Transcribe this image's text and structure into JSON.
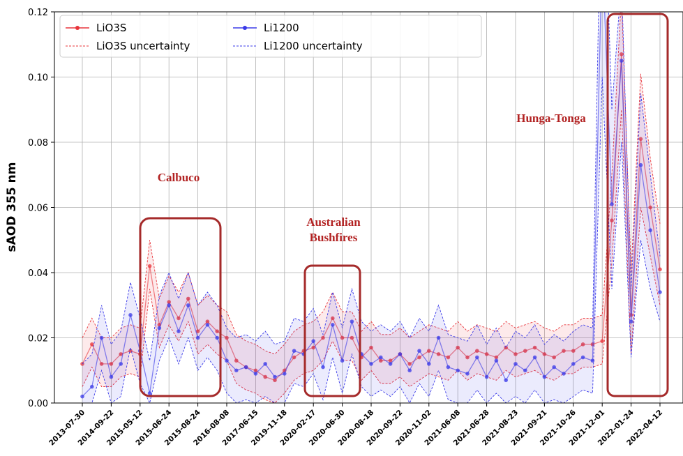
{
  "chart_data": {
    "type": "line",
    "y_label": "sAOD 355 nm",
    "ylim": [
      0,
      0.12
    ],
    "yticks": [
      {
        "value": 0,
        "label": "0.00"
      },
      0.02,
      0.04,
      0.06,
      0.08,
      {
        "value": 0.1,
        "label": "0.10"
      },
      0.12
    ],
    "grid": true,
    "legend": "upper left",
    "annotations": [
      "Calbuco",
      "Australian",
      "Bushfires",
      "Hunga-Tonga"
    ],
    "categories": [
      "2013-07-30",
      null,
      null,
      "2014-09-22",
      null,
      null,
      "2015-05-12",
      null,
      null,
      "2015-06-24",
      null,
      null,
      "2015-08-24",
      null,
      null,
      "2016-08-08",
      null,
      null,
      "2017-06-15",
      null,
      null,
      "2019-11-18",
      null,
      null,
      "2020-02-17",
      null,
      null,
      "2020-06-30",
      null,
      null,
      "2020-08-18",
      null,
      null,
      "2020-09-22",
      null,
      null,
      "2020-11-02",
      null,
      null,
      "2021-06-08",
      null,
      null,
      "2021-06-28",
      null,
      null,
      "2021-08-23",
      null,
      null,
      "2021-09-21",
      null,
      null,
      "2021-10-26",
      null,
      null,
      "2021-12-01",
      null,
      null,
      "2022-01-24",
      null,
      null,
      "2022-04-12"
    ],
    "series": [
      {
        "name": "LiO3S",
        "color": "#e8343a",
        "values": [
          0.012,
          0.018,
          0.012,
          0.012,
          0.015,
          0.016,
          0.015,
          0.042,
          0.024,
          0.031,
          0.026,
          0.032,
          0.022,
          0.025,
          0.022,
          0.02,
          0.013,
          0.011,
          0.01,
          0.008,
          0.007,
          0.01,
          0.014,
          0.016,
          0.017,
          0.02,
          0.026,
          0.02,
          0.02,
          0.014,
          0.017,
          0.013,
          0.013,
          0.015,
          0.012,
          0.014,
          0.016,
          0.015,
          0.014,
          0.017,
          0.014,
          0.016,
          0.015,
          0.014,
          0.017,
          0.015,
          0.016,
          0.017,
          0.015,
          0.014,
          0.016,
          0.016,
          0.018,
          0.018,
          0.019,
          0.056,
          0.107,
          0.027,
          0.081,
          0.06,
          0.041
        ]
      },
      {
        "name": "LiO3S uncertainty",
        "color": "#e8343a",
        "lower": [
          0.005,
          0.011,
          0.005,
          0.005,
          0.008,
          0.009,
          0.008,
          0.035,
          0.017,
          0.024,
          0.019,
          0.025,
          0.015,
          0.018,
          0.015,
          0.013,
          0.006,
          0.004,
          0.003,
          0.001,
          0,
          0.003,
          0.007,
          0.009,
          0.01,
          0.013,
          0.019,
          0.013,
          0.013,
          0.007,
          0.01,
          0.006,
          0.006,
          0.008,
          0.005,
          0.007,
          0.009,
          0.008,
          0.007,
          0.01,
          0.007,
          0.009,
          0.008,
          0.007,
          0.01,
          0.008,
          0.009,
          0.01,
          0.008,
          0.007,
          0.009,
          0.009,
          0.011,
          0.011,
          0.012,
          0.043,
          0.09,
          0.015,
          0.06,
          0.045,
          0.03
        ],
        "upper": [
          0.02,
          0.026,
          0.02,
          0.02,
          0.023,
          0.024,
          0.023,
          0.05,
          0.032,
          0.039,
          0.034,
          0.04,
          0.03,
          0.033,
          0.03,
          0.028,
          0.021,
          0.019,
          0.018,
          0.016,
          0.015,
          0.018,
          0.022,
          0.024,
          0.025,
          0.028,
          0.034,
          0.028,
          0.028,
          0.022,
          0.025,
          0.021,
          0.021,
          0.023,
          0.02,
          0.022,
          0.024,
          0.023,
          0.022,
          0.025,
          0.022,
          0.024,
          0.023,
          0.022,
          0.025,
          0.023,
          0.024,
          0.025,
          0.023,
          0.022,
          0.024,
          0.024,
          0.026,
          0.026,
          0.027,
          0.07,
          0.125,
          0.04,
          0.101,
          0.075,
          0.055
        ]
      },
      {
        "name": "Li1200",
        "color": "#3a3ae8",
        "values": [
          0.002,
          0.005,
          0.02,
          0.008,
          0.012,
          0.027,
          0.016,
          0.003,
          0.023,
          0.03,
          0.022,
          0.03,
          0.02,
          0.024,
          0.02,
          0.013,
          0.01,
          0.011,
          0.009,
          0.012,
          0.008,
          0.009,
          0.016,
          0.015,
          0.019,
          0.011,
          0.024,
          0.013,
          0.025,
          0.015,
          0.012,
          0.014,
          0.012,
          0.015,
          0.01,
          0.016,
          0.012,
          0.02,
          0.011,
          0.01,
          0.009,
          0.014,
          0.008,
          0.013,
          0.007,
          0.012,
          0.01,
          0.014,
          0.008,
          0.011,
          0.009,
          0.012,
          0.014,
          0.013,
          0.14,
          0.061,
          0.105,
          0.025,
          0.073,
          0.053,
          0.034
        ]
      },
      {
        "name": "Li1200 uncertainty",
        "color": "#3a3ae8",
        "lower": [
          0,
          0,
          0.01,
          0,
          0.002,
          0.017,
          0.006,
          0,
          0.013,
          0.02,
          0.012,
          0.02,
          0.01,
          0.014,
          0.01,
          0.003,
          0,
          0.001,
          0,
          0.002,
          0,
          0,
          0.006,
          0.005,
          0.009,
          0.001,
          0.014,
          0.003,
          0.015,
          0.005,
          0.002,
          0.004,
          0.002,
          0.005,
          0,
          0.006,
          0.002,
          0.01,
          0.001,
          0,
          0,
          0.004,
          0,
          0.003,
          0,
          0.002,
          0,
          0.004,
          0,
          0.001,
          0,
          0.002,
          0.004,
          0.003,
          0.1,
          0.035,
          0.08,
          0.014,
          0.05,
          0.035,
          0.025
        ],
        "upper": [
          0.012,
          0.015,
          0.03,
          0.018,
          0.022,
          0.037,
          0.026,
          0.013,
          0.033,
          0.04,
          0.032,
          0.04,
          0.03,
          0.034,
          0.03,
          0.023,
          0.02,
          0.021,
          0.019,
          0.022,
          0.018,
          0.019,
          0.026,
          0.025,
          0.029,
          0.021,
          0.034,
          0.023,
          0.035,
          0.025,
          0.022,
          0.024,
          0.022,
          0.025,
          0.02,
          0.026,
          0.022,
          0.03,
          0.021,
          0.02,
          0.019,
          0.024,
          0.018,
          0.023,
          0.017,
          0.022,
          0.02,
          0.024,
          0.018,
          0.021,
          0.019,
          0.022,
          0.024,
          0.023,
          0.18,
          0.09,
          0.13,
          0.035,
          0.095,
          0.07,
          0.045
        ]
      }
    ]
  }
}
